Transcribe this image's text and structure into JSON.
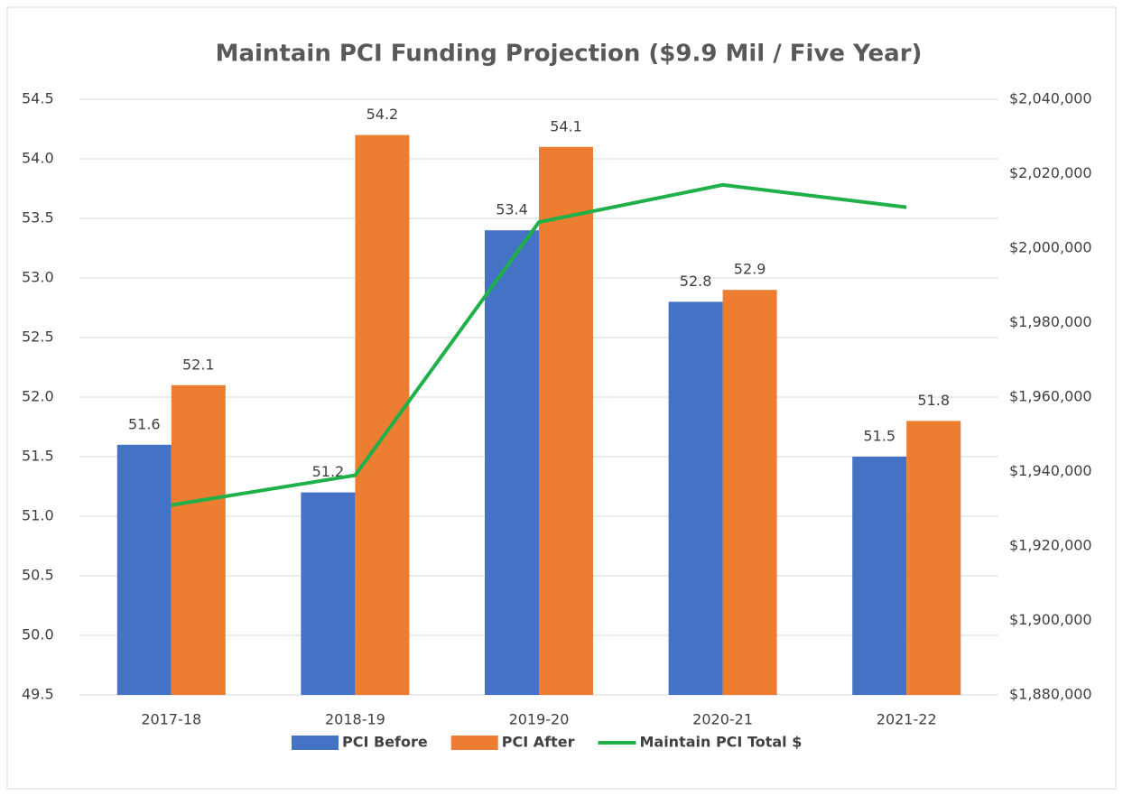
{
  "chart_data": {
    "type": "bar",
    "title": "Maintain PCI Funding Projection ($9.9 Mil / Five Year)",
    "categories": [
      "2017-18",
      "2018-19",
      "2019-20",
      "2020-21",
      "2021-22"
    ],
    "series": [
      {
        "name": "PCI Before",
        "color": "#4472c4",
        "type": "bar",
        "values": [
          51.6,
          51.2,
          53.4,
          52.8,
          51.5
        ]
      },
      {
        "name": "PCI After",
        "color": "#ed7d31",
        "type": "bar",
        "values": [
          52.1,
          54.2,
          54.1,
          52.9,
          51.8
        ]
      },
      {
        "name": "Maintain PCI Total $",
        "color": "#1fb04a",
        "type": "line",
        "axis": "y2",
        "values": [
          1931000,
          1939000,
          2007000,
          2017000,
          2011000
        ]
      }
    ],
    "ylim": [
      49.5,
      54.5
    ],
    "yticks": [
      49.5,
      {
        "value": 50,
        "label": "50.0"
      },
      50.5,
      {
        "value": 51,
        "label": "51.0"
      },
      51.5,
      {
        "value": 52,
        "label": "52.0"
      },
      52.5,
      {
        "value": 53,
        "label": "53.0"
      },
      53.5,
      {
        "value": 54,
        "label": "54.0"
      },
      54.5
    ],
    "y2lim": [
      1880000,
      2040000
    ],
    "y2ticks": [
      {
        "value": 1880000,
        "label": "$1,880,000"
      },
      {
        "value": 1900000,
        "label": "$1,900,000"
      },
      {
        "value": 1920000,
        "label": "$1,920,000"
      },
      {
        "value": 1940000,
        "label": "$1,940,000"
      },
      {
        "value": 1960000,
        "label": "$1,960,000"
      },
      {
        "value": 1980000,
        "label": "$1,980,000"
      },
      {
        "value": 2000000,
        "label": "$2,000,000"
      },
      {
        "value": 2020000,
        "label": "$2,020,000"
      },
      {
        "value": 2040000,
        "label": "$2,040,000"
      }
    ],
    "grid": true,
    "legend": "bottom"
  }
}
